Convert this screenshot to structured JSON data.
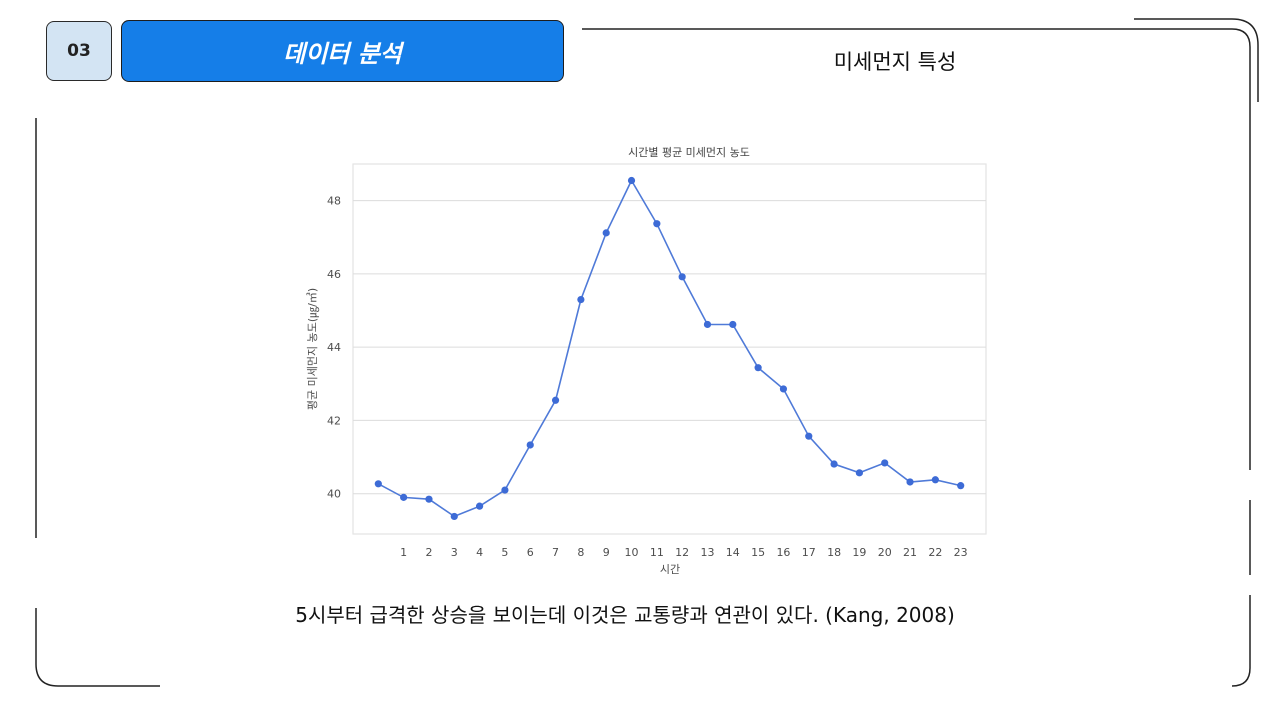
{
  "header": {
    "number": "03",
    "section_title": "데이터 분석",
    "subtitle": "미세먼지 특성"
  },
  "caption": "5시부터 급격한 상승을 보이는데 이것은 교통량과 연관이 있다. (Kang, 2008)",
  "colors": {
    "title_bar": "#157ee8",
    "badge": "#d3e4f3",
    "line": "#4f7ad8",
    "point": "#3d6bd6"
  },
  "chart_data": {
    "type": "line",
    "title": "시간별 평균 미세먼지 농도",
    "xlabel": "시간",
    "ylabel": "평균 미세먼지 농도(㎍/㎥)",
    "x": [
      0,
      1,
      2,
      3,
      4,
      5,
      6,
      7,
      8,
      9,
      10,
      11,
      12,
      13,
      14,
      15,
      16,
      17,
      18,
      19,
      20,
      21,
      22,
      23
    ],
    "x_tick_labels": [
      "1",
      "2",
      "3",
      "4",
      "5",
      "6",
      "7",
      "8",
      "9",
      "10",
      "11",
      "12",
      "13",
      "14",
      "15",
      "16",
      "17",
      "18",
      "19",
      "20",
      "21",
      "22",
      "23"
    ],
    "y": [
      40.27,
      39.9,
      39.85,
      39.38,
      39.66,
      40.1,
      41.33,
      42.55,
      45.3,
      47.12,
      48.55,
      47.37,
      45.92,
      44.62,
      44.62,
      43.44,
      42.86,
      41.57,
      40.81,
      40.57,
      40.84,
      40.32,
      40.38,
      40.22
    ],
    "yticks": [
      40,
      42,
      44,
      46,
      48
    ],
    "ylim": [
      38.9,
      49.0
    ],
    "grid": true,
    "marker": "circle"
  }
}
